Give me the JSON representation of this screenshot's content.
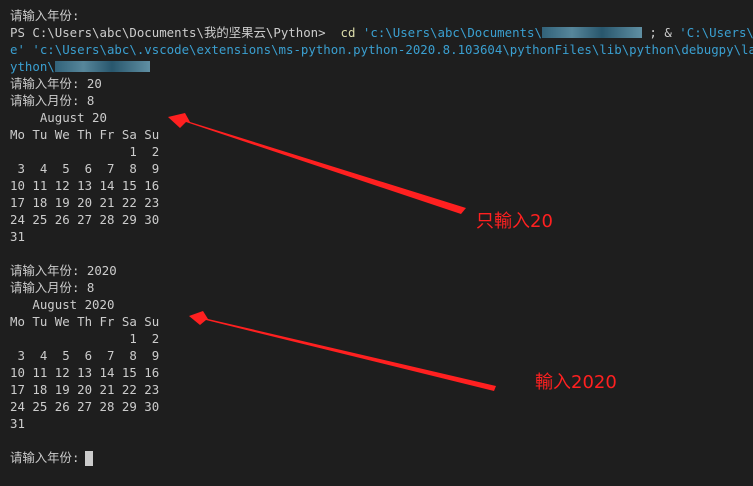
{
  "terminal": {
    "prompt_year_first": "请输入年份:",
    "ps_prefix": "PS C:\\Users\\abc\\Documents\\我的坚果云\\Python>",
    "cmd": "cd",
    "path1": "'c:\\Users\\abc\\Documents\\",
    "amp": "; &",
    "path2": "'C:\\Users\\a",
    "wrap_line2": "e' 'c:\\Users\\abc\\.vscode\\extensions\\ms-python.python-2020.8.103604\\pythonFiles\\lib\\python\\debugpy\\launcher",
    "wrap_line3_start": "ython\\",
    "run1": {
      "year_prompt": "请输入年份: 20",
      "month_prompt": "请输入月份: 8",
      "calendar": [
        "    August 20",
        "Mo Tu We Th Fr Sa Su",
        "                1  2",
        " 3  4  5  6  7  8  9",
        "10 11 12 13 14 15 16",
        "17 18 19 20 21 22 23",
        "24 25 26 27 28 29 30",
        "31"
      ]
    },
    "run2": {
      "year_prompt": "请输入年份: 2020",
      "month_prompt": "请输入月份: 8",
      "calendar": [
        "   August 2020",
        "Mo Tu We Th Fr Sa Su",
        "                1  2",
        " 3  4  5  6  7  8  9",
        "10 11 12 13 14 15 16",
        "17 18 19 20 21 22 23",
        "24 25 26 27 28 29 30",
        "31"
      ]
    },
    "final_prompt": "请输入年份:"
  },
  "annotations": {
    "note1": "只輸入20",
    "note2": "輸入2020",
    "color": "#ff2020"
  }
}
